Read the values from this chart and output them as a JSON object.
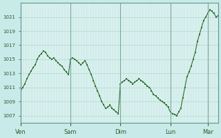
{
  "background_color": "#c8eae8",
  "plot_bg_color": "#d8f0ee",
  "line_color": "#2d6e2d",
  "marker_color": "#2d6e2d",
  "grid_color": "#b0d8d4",
  "tick_label_color": "#2d5a2d",
  "ylim": [
    1006,
    1023
  ],
  "yticks": [
    1007,
    1009,
    1011,
    1013,
    1015,
    1017,
    1019,
    1021
  ],
  "day_labels": [
    "Ven",
    "Sam",
    "Dim",
    "Lun",
    "Mar"
  ],
  "day_positions": [
    0,
    72,
    144,
    216,
    270
  ],
  "x_points": [
    0,
    3,
    6,
    9,
    12,
    15,
    18,
    21,
    24,
    27,
    30,
    33,
    36,
    39,
    42,
    45,
    48,
    51,
    54,
    57,
    60,
    63,
    66,
    69,
    72,
    75,
    78,
    81,
    84,
    87,
    90,
    93,
    96,
    99,
    102,
    105,
    108,
    111,
    114,
    117,
    120,
    123,
    126,
    129,
    132,
    135,
    138,
    141,
    144,
    147,
    150,
    153,
    156,
    159,
    162,
    165,
    168,
    171,
    174,
    177,
    180,
    183,
    186,
    189,
    192,
    195,
    198,
    201,
    204,
    207,
    210,
    213,
    216,
    219,
    222,
    225,
    228,
    231,
    234,
    237,
    240,
    243,
    246,
    249,
    252,
    255,
    258,
    261,
    264,
    267,
    270,
    273,
    276,
    279,
    282,
    285
  ],
  "y_points": [
    1010.5,
    1011.0,
    1011.5,
    1012.2,
    1012.8,
    1013.3,
    1013.8,
    1014.2,
    1015.0,
    1015.5,
    1015.8,
    1016.2,
    1016.0,
    1015.5,
    1015.2,
    1015.0,
    1015.2,
    1014.8,
    1014.5,
    1014.2,
    1014.0,
    1013.5,
    1013.2,
    1012.8,
    1015.0,
    1015.2,
    1015.0,
    1014.8,
    1014.5,
    1014.2,
    1014.5,
    1014.8,
    1014.2,
    1013.5,
    1012.8,
    1012.0,
    1011.2,
    1010.5,
    1009.8,
    1009.0,
    1008.5,
    1008.0,
    1008.2,
    1008.5,
    1008.0,
    1007.8,
    1007.5,
    1007.3,
    1011.5,
    1011.8,
    1012.0,
    1012.2,
    1012.0,
    1011.8,
    1011.5,
    1011.8,
    1012.0,
    1012.2,
    1012.0,
    1011.8,
    1011.5,
    1011.2,
    1011.0,
    1010.5,
    1010.0,
    1009.8,
    1009.5,
    1009.2,
    1009.0,
    1008.8,
    1008.5,
    1008.2,
    1007.5,
    1007.3,
    1007.2,
    1007.0,
    1007.5,
    1008.0,
    1009.5,
    1011.0,
    1012.5,
    1013.2,
    1014.0,
    1015.0,
    1016.0,
    1017.5,
    1018.5,
    1019.5,
    1020.5,
    1021.0,
    1021.5,
    1022.0,
    1021.8,
    1021.5,
    1021.0,
    1021.2
  ]
}
